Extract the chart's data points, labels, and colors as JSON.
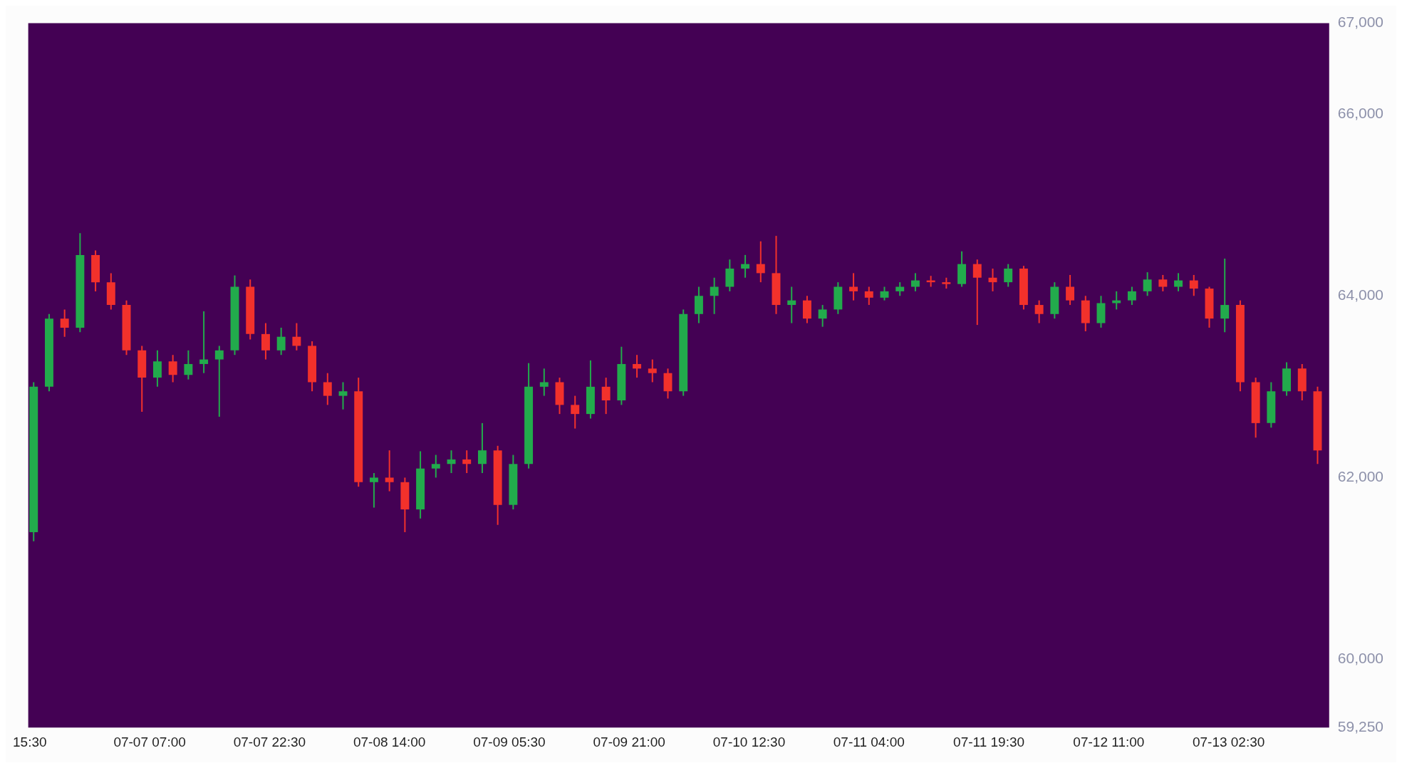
{
  "chart_data": {
    "type": "candlestick",
    "x": [
      "--07-06T16:00",
      "--07-06T18:00",
      "--07-06T20:00",
      "--07-06T22:00",
      "--07-07T00:00",
      "--07-07T02:00",
      "--07-07T04:00",
      "--07-07T06:00",
      "--07-07T08:00",
      "--07-07T10:00",
      "--07-07T12:00",
      "--07-07T14:00",
      "--07-07T16:00",
      "--07-07T18:00",
      "--07-07T20:00",
      "--07-07T22:00",
      "--07-08T00:00",
      "--07-08T02:00",
      "--07-08T04:00",
      "--07-08T06:00",
      "--07-08T08:00",
      "--07-08T10:00",
      "--07-08T12:00",
      "--07-08T14:00",
      "--07-08T16:00",
      "--07-08T18:00",
      "--07-08T20:00",
      "--07-08T22:00",
      "--07-09T00:00",
      "--07-09T02:00",
      "--07-09T04:00",
      "--07-09T06:00",
      "--07-09T08:00",
      "--07-09T10:00",
      "--07-09T12:00",
      "--07-09T14:00",
      "--07-09T16:00",
      "--07-09T18:00",
      "--07-09T20:00",
      "--07-09T22:00",
      "--07-10T00:00",
      "--07-10T02:00",
      "--07-10T04:00",
      "--07-10T06:00",
      "--07-10T08:00",
      "--07-10T10:00",
      "--07-10T12:00",
      "--07-10T14:00",
      "--07-10T16:00",
      "--07-10T18:00",
      "--07-10T20:00",
      "--07-10T22:00",
      "--07-11T00:00",
      "--07-11T02:00",
      "--07-11T04:00",
      "--07-11T06:00",
      "--07-11T08:00",
      "--07-11T10:00",
      "--07-11T12:00",
      "--07-11T14:00",
      "--07-11T16:00",
      "--07-11T18:00",
      "--07-11T20:00",
      "--07-11T22:00",
      "--07-12T00:00",
      "--07-12T02:00",
      "--07-12T04:00",
      "--07-12T06:00",
      "--07-12T08:00",
      "--07-12T10:00",
      "--07-12T12:00",
      "--07-12T14:00",
      "--07-12T16:00",
      "--07-12T18:00",
      "--07-12T20:00",
      "--07-12T22:00",
      "--07-13T00:00",
      "--07-13T02:00",
      "--07-13T04:00",
      "--07-13T06:00",
      "--07-13T08:00",
      "--07-13T10:00",
      "--07-13T12:00",
      "--07-13T14:00"
    ],
    "ohlc": [
      [
        61400,
        63050,
        61300,
        63000
      ],
      [
        63000,
        63800,
        62950,
        63750
      ],
      [
        63750,
        63850,
        63550,
        63650
      ],
      [
        63650,
        64690,
        63600,
        64450
      ],
      [
        64450,
        64500,
        64050,
        64150
      ],
      [
        64150,
        64250,
        63850,
        63900
      ],
      [
        63900,
        63950,
        63350,
        63400
      ],
      [
        63400,
        63450,
        62725,
        63100
      ],
      [
        63100,
        63400,
        63000,
        63280
      ],
      [
        63280,
        63350,
        63050,
        63130
      ],
      [
        63130,
        63400,
        63080,
        63250
      ],
      [
        63250,
        63830,
        63150,
        63300
      ],
      [
        63300,
        63450,
        62670,
        63400
      ],
      [
        63400,
        64225,
        63350,
        64100
      ],
      [
        64100,
        64180,
        63520,
        63580
      ],
      [
        63580,
        63700,
        63300,
        63400
      ],
      [
        63400,
        63650,
        63350,
        63550
      ],
      [
        63550,
        63700,
        63400,
        63450
      ],
      [
        63450,
        63500,
        62950,
        63050
      ],
      [
        63050,
        63150,
        62800,
        62900
      ],
      [
        62900,
        63050,
        62750,
        62950
      ],
      [
        62950,
        63100,
        61900,
        61950
      ],
      [
        61950,
        62050,
        61670,
        62000
      ],
      [
        62000,
        62300,
        61850,
        61950
      ],
      [
        61950,
        62000,
        61400,
        61650
      ],
      [
        61650,
        62290,
        61550,
        62100
      ],
      [
        62100,
        62250,
        62000,
        62150
      ],
      [
        62150,
        62300,
        62050,
        62200
      ],
      [
        62200,
        62300,
        62050,
        62150
      ],
      [
        62150,
        62600,
        62050,
        62300
      ],
      [
        62300,
        62350,
        61480,
        61700
      ],
      [
        61700,
        62250,
        61650,
        62150
      ],
      [
        62150,
        63260,
        62100,
        63000
      ],
      [
        63000,
        63200,
        62900,
        63050
      ],
      [
        63050,
        63100,
        62700,
        62800
      ],
      [
        62800,
        62900,
        62540,
        62700
      ],
      [
        62700,
        63290,
        62650,
        63000
      ],
      [
        63000,
        63100,
        62700,
        62850
      ],
      [
        62850,
        63440,
        62800,
        63250
      ],
      [
        63250,
        63350,
        63100,
        63200
      ],
      [
        63200,
        63300,
        63050,
        63150
      ],
      [
        63150,
        63200,
        62870,
        62950
      ],
      [
        62950,
        63850,
        62900,
        63800
      ],
      [
        63800,
        64100,
        63700,
        64000
      ],
      [
        64000,
        64200,
        63800,
        64100
      ],
      [
        64100,
        64400,
        64050,
        64300
      ],
      [
        64300,
        64450,
        64200,
        64350
      ],
      [
        64350,
        64600,
        64150,
        64250
      ],
      [
        64250,
        64660,
        63800,
        63900
      ],
      [
        63900,
        64100,
        63700,
        63950
      ],
      [
        63950,
        64000,
        63700,
        63750
      ],
      [
        63750,
        63900,
        63660,
        63850
      ],
      [
        63850,
        64150,
        63800,
        64100
      ],
      [
        64100,
        64250,
        63950,
        64050
      ],
      [
        64050,
        64100,
        63900,
        63980
      ],
      [
        63980,
        64100,
        63950,
        64050
      ],
      [
        64050,
        64150,
        64000,
        64100
      ],
      [
        64100,
        64250,
        64050,
        64170
      ],
      [
        64170,
        64220,
        64100,
        64150
      ],
      [
        64150,
        64200,
        64080,
        64130
      ],
      [
        64130,
        64490,
        64100,
        64350
      ],
      [
        64350,
        64400,
        63680,
        64200
      ],
      [
        64200,
        64300,
        64050,
        64150
      ],
      [
        64150,
        64350,
        64100,
        64300
      ],
      [
        64300,
        64330,
        63850,
        63900
      ],
      [
        63900,
        63950,
        63700,
        63800
      ],
      [
        63800,
        64150,
        63750,
        64100
      ],
      [
        64100,
        64230,
        63900,
        63950
      ],
      [
        63950,
        64000,
        63610,
        63700
      ],
      [
        63700,
        64000,
        63650,
        63920
      ],
      [
        63920,
        64050,
        63850,
        63950
      ],
      [
        63950,
        64100,
        63900,
        64050
      ],
      [
        64050,
        64260,
        64000,
        64180
      ],
      [
        64180,
        64230,
        64050,
        64100
      ],
      [
        64100,
        64250,
        64050,
        64170
      ],
      [
        64170,
        64230,
        64000,
        64080
      ],
      [
        64080,
        64100,
        63650,
        63750
      ],
      [
        63750,
        64410,
        63600,
        63900
      ],
      [
        63900,
        63950,
        62950,
        63050
      ],
      [
        63050,
        63100,
        62440,
        62600
      ],
      [
        62600,
        63050,
        62550,
        62950
      ],
      [
        62950,
        63270,
        62900,
        63200
      ],
      [
        63200,
        63250,
        62850,
        62950
      ],
      [
        62950,
        63000,
        62150,
        62300
      ]
    ],
    "colors": [
      "#22ab4c",
      "#22ab4c",
      "#f2312b",
      "#22ab4c",
      "#f2312b",
      "#f2312b",
      "#f2312b",
      "#f2312b",
      "#22ab4c",
      "#f2312b",
      "#22ab4c",
      "#22ab4c",
      "#22ab4c",
      "#22ab4c",
      "#f2312b",
      "#f2312b",
      "#22ab4c",
      "#f2312b",
      "#f2312b",
      "#f2312b",
      "#22ab4c",
      "#f2312b",
      "#22ab4c",
      "#f2312b",
      "#f2312b",
      "#22ab4c",
      "#22ab4c",
      "#22ab4c",
      "#f2312b",
      "#22ab4c",
      "#f2312b",
      "#22ab4c",
      "#22ab4c",
      "#22ab4c",
      "#f2312b",
      "#f2312b",
      "#22ab4c",
      "#f2312b",
      "#22ab4c",
      "#f2312b",
      "#f2312b",
      "#f2312b",
      "#22ab4c",
      "#22ab4c",
      "#22ab4c",
      "#22ab4c",
      "#22ab4c",
      "#f2312b",
      "#f2312b",
      "#22ab4c",
      "#f2312b",
      "#22ab4c",
      "#22ab4c",
      "#f2312b",
      "#f2312b",
      "#22ab4c",
      "#22ab4c",
      "#22ab4c",
      "#f2312b",
      "#f2312b",
      "#22ab4c",
      "#f2312b",
      "#f2312b",
      "#22ab4c",
      "#f2312b",
      "#f2312b",
      "#22ab4c",
      "#f2312b",
      "#f2312b",
      "#22ab4c",
      "#22ab4c",
      "#22ab4c",
      "#22ab4c",
      "#f2312b",
      "#22ab4c",
      "#f2312b",
      "#f2312b",
      "#22ab4c",
      "#f2312b",
      "#f2312b",
      "#22ab4c",
      "#22ab4c",
      "#f2312b",
      "#f2312b"
    ],
    "xlim": [
      "--07-06T15:18",
      "--07-13T15:30"
    ],
    "xticks": [
      {
        "value": "--07-06T15:30",
        "label": "15:30"
      },
      {
        "value": "--07-07T07:00",
        "label": "07-07 07:00"
      },
      {
        "value": "--07-07T22:30",
        "label": "07-07 22:30"
      },
      {
        "value": "--07-08T14:00",
        "label": "07-08 14:00"
      },
      {
        "value": "--07-09T05:30",
        "label": "07-09 05:30"
      },
      {
        "value": "--07-09T21:00",
        "label": "07-09 21:00"
      },
      {
        "value": "--07-10T12:30",
        "label": "07-10 12:30"
      },
      {
        "value": "--07-11T04:00",
        "label": "07-11 04:00"
      },
      {
        "value": "--07-11T19:30",
        "label": "07-11 19:30"
      },
      {
        "value": "--07-12T11:00",
        "label": "07-12 11:00"
      },
      {
        "value": "--07-13T02:30",
        "label": "07-13 02:30"
      }
    ],
    "ylim": [
      59250,
      67000
    ],
    "yticks": [
      {
        "value": 59250,
        "label": "59,250"
      },
      {
        "value": 60000,
        "label": "60,000"
      },
      {
        "value": 62000,
        "label": "62,000"
      },
      {
        "value": 64000,
        "label": "64,000"
      },
      {
        "value": 66000,
        "label": "66,000"
      },
      {
        "value": 67000,
        "label": "67,000"
      }
    ],
    "grid": false
  }
}
